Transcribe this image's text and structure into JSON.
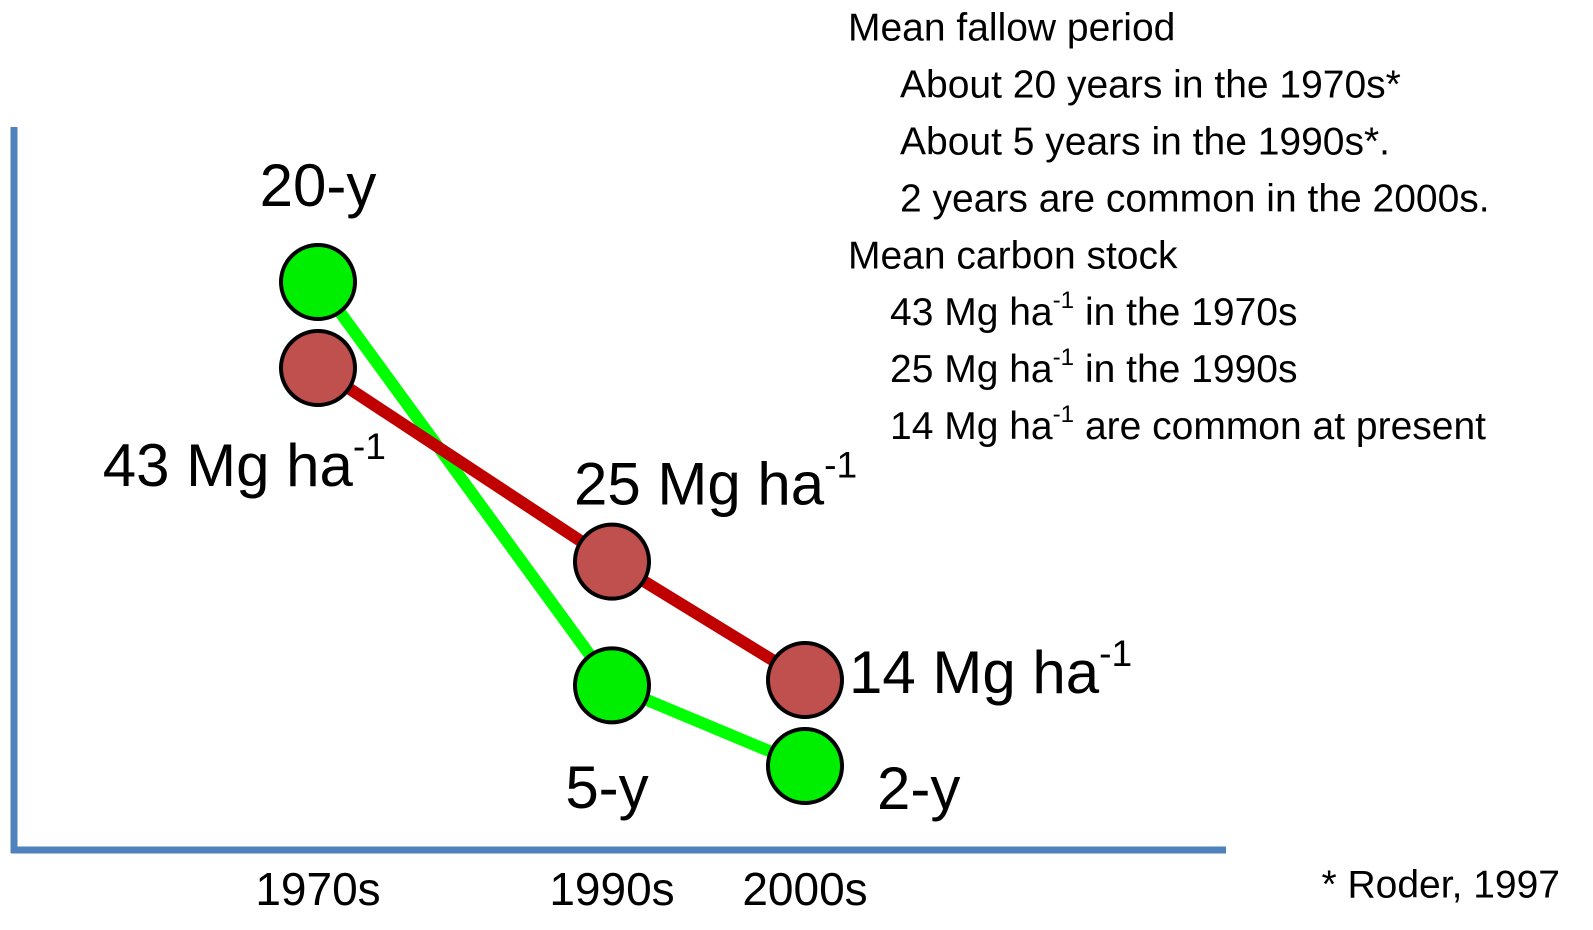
{
  "chart_data": {
    "type": "line",
    "categories": [
      "1970s",
      "1990s",
      "2000s"
    ],
    "series": [
      {
        "name": "Mean fallow period",
        "color": "#00ff00",
        "marker_color": "#00ee00",
        "values": [
          20,
          5,
          2
        ],
        "value_labels": [
          "20-y",
          "5-y",
          "2-y"
        ]
      },
      {
        "name": "Mean carbon stock",
        "color": "#c00000",
        "marker_color": "#c0504d",
        "values": [
          43,
          25,
          14
        ],
        "value_labels": [
          "43 Mg ha-1",
          "25 Mg ha-1",
          "14 Mg ha-1"
        ]
      }
    ],
    "notes": [
      {
        "heading": "Mean fallow period",
        "lines": [
          "About 20 years in the 1970s*",
          "About 5 years in the 1990s*.",
          "2 years are common in the 2000s."
        ]
      },
      {
        "heading": "Mean carbon stock",
        "lines": [
          "43 Mg ha-1 in the 1970s",
          "25 Mg ha-1 in the 1990s",
          "14 Mg ha-1 are common at present"
        ]
      }
    ],
    "footnote": "* Roder, 1997"
  }
}
